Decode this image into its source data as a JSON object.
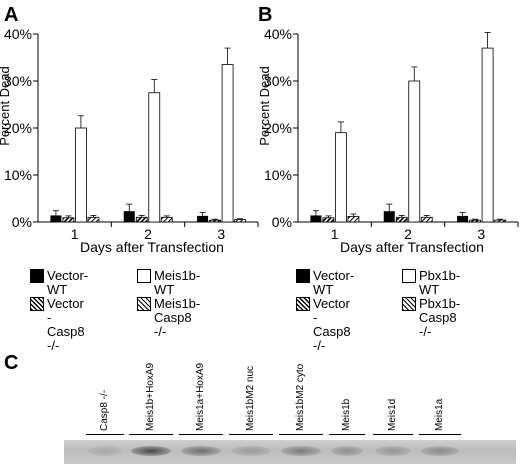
{
  "panels": {
    "a": "A",
    "b": "B",
    "c": "C"
  },
  "chart_data": [
    {
      "type": "bar",
      "panel": "A",
      "categories": [
        "1",
        "2",
        "3"
      ],
      "xlabel": "Days after Transfection",
      "ylabel": "Percent Dead",
      "ylim": [
        0,
        40
      ],
      "yticks": [
        "0%",
        "10%",
        "20%",
        "30%",
        "40%"
      ],
      "grid": false,
      "series": [
        {
          "name": "Vector-WT",
          "values": [
            1.4,
            2.3,
            1.3
          ],
          "errors": [
            1.0,
            1.5,
            0.7
          ],
          "fill": "black"
        },
        {
          "name": "Vector -Casp8 -/-",
          "values": [
            0.9,
            1.0,
            0.4
          ],
          "errors": [
            0.4,
            0.4,
            0.2
          ],
          "fill": "dense-hatch"
        },
        {
          "name": "Meis1b-WT",
          "values": [
            20.0,
            27.5,
            33.5
          ],
          "errors": [
            2.6,
            2.8,
            3.5
          ],
          "fill": "white"
        },
        {
          "name": "Meis1b-Casp8 -/-",
          "values": [
            1.0,
            1.0,
            0.5
          ],
          "errors": [
            0.4,
            0.3,
            0.2
          ],
          "fill": "sparse-hatch"
        }
      ]
    },
    {
      "type": "bar",
      "panel": "B",
      "categories": [
        "1",
        "2",
        "3"
      ],
      "xlabel": "Days after Transfection",
      "ylabel": "Percent Dead",
      "ylim": [
        0,
        40
      ],
      "yticks": [
        "0%",
        "10%",
        "20%",
        "30%",
        "40%"
      ],
      "grid": false,
      "series": [
        {
          "name": "Vector-WT",
          "values": [
            1.4,
            2.3,
            1.3
          ],
          "errors": [
            1.0,
            1.5,
            0.7
          ],
          "fill": "black"
        },
        {
          "name": "Vector -Casp8 -/-",
          "values": [
            0.9,
            1.0,
            0.4
          ],
          "errors": [
            0.4,
            0.4,
            0.2
          ],
          "fill": "dense-hatch"
        },
        {
          "name": "Pbx1b-WT",
          "values": [
            19.0,
            30.0,
            37.0
          ],
          "errors": [
            2.3,
            3.0,
            3.3
          ],
          "fill": "white"
        },
        {
          "name": "Pbx1b-Casp8 -/-",
          "values": [
            1.2,
            1.0,
            0.4
          ],
          "errors": [
            0.5,
            0.4,
            0.2
          ],
          "fill": "sparse-hatch"
        }
      ]
    }
  ],
  "legend_a": [
    "Vector-WT",
    "Meis1b-WT",
    "Vector\n-Casp8 -/-",
    "Meis1b-Casp8 -/-"
  ],
  "legend_b": [
    "Vector-WT",
    "Pbx1b-WT",
    "Vector\n-Casp8 -/-",
    "Pbx1b-Casp8 -/-"
  ],
  "blot": {
    "lanes": [
      "Casp8 -/-",
      "Meis1b+HoxA9",
      "Meis1a+HoxA9",
      "Meis1bM2 nuc",
      "Meis1bM2 cyto",
      "Meis1b",
      "Meis1d",
      "Meis1a"
    ],
    "band_intensity": [
      0.1,
      0.85,
      0.55,
      0.2,
      0.45,
      0.3,
      0.25,
      0.35
    ]
  }
}
